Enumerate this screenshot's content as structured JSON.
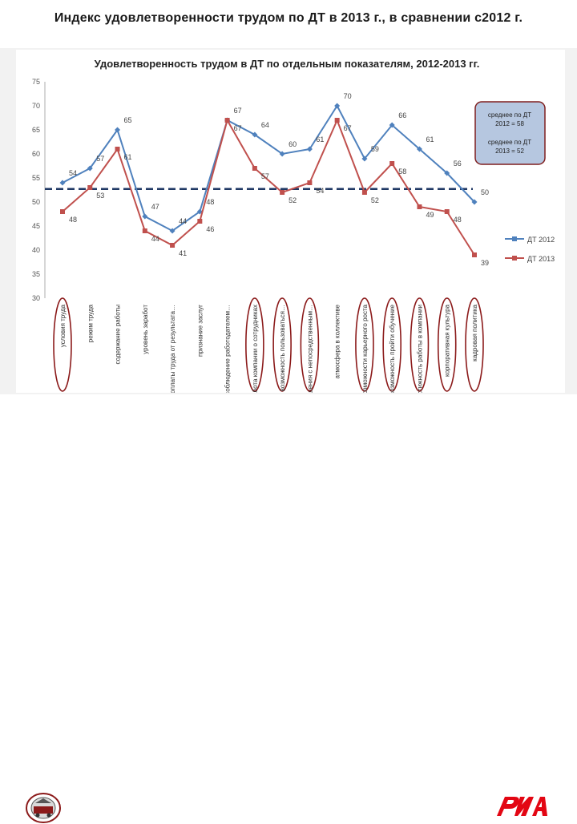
{
  "header": {
    "title": "Индекс удовлетворенности трудом по ДТ в 2013 г., в сравнении с2012 г."
  },
  "chart_data": {
    "type": "line",
    "title": "Удовлетворенность трудом в ДТ по отдельным показателям, 2012-2013 гг.",
    "categories": [
      "условия труда",
      "режим труда",
      "содержание работы",
      "уровень заработ",
      "зависимость оплаты труда от результата…",
      "признание заслуг",
      "соблюдение работодателем…",
      "забота компании о сотрудниках",
      "возможность пользоваться…",
      "отношения с непосредственным…",
      "атмосфера в коллективе",
      "возможности карьерного роста",
      "возможность пройти обучение",
      "престижность работы в компании",
      "корпоративная культура",
      "кадровая политика"
    ],
    "ylim": [
      30,
      75
    ],
    "yticks": [
      30,
      35,
      40,
      45,
      50,
      55,
      60,
      65,
      70,
      75
    ],
    "grid": false,
    "legend_position": "right",
    "series": [
      {
        "name": "ДТ 2012",
        "color": "#4f81bd",
        "values": [
          54,
          57,
          65,
          47,
          44,
          48,
          67,
          64,
          60,
          61,
          70,
          59,
          66,
          61,
          56,
          50
        ]
      },
      {
        "name": "ДТ 2013",
        "color": "#c0504d",
        "values": [
          48,
          53,
          61,
          44,
          41,
          46,
          67,
          57,
          52,
          54,
          67,
          52,
          58,
          49,
          48,
          39
        ]
      }
    ],
    "data_labels_2012": [
      "54",
      "57",
      "65",
      "47",
      "44",
      "48",
      "67",
      "64",
      "60",
      "61",
      "70",
      "59",
      "66",
      "61",
      "56",
      "50"
    ],
    "data_labels_2013": [
      "48",
      "53",
      "61",
      "44",
      "41",
      "46",
      "67",
      "57",
      "52",
      "54",
      "67",
      "52",
      "58",
      "49",
      "48",
      "39"
    ],
    "average_line": {
      "value": 52.7,
      "color": "#1f3864"
    },
    "annotation": {
      "line1": "среднее по ДТ",
      "line2": "2012 = 58",
      "line3": "среднее по ДТ",
      "line4": "2013 = 52",
      "border_color": "#7f1f1f",
      "fill_color": "#b6c7e0"
    },
    "highlighted_categories": [
      0,
      7,
      8,
      9,
      11,
      12,
      13,
      14,
      15
    ],
    "highlight_color": "#8b1a1a"
  }
}
